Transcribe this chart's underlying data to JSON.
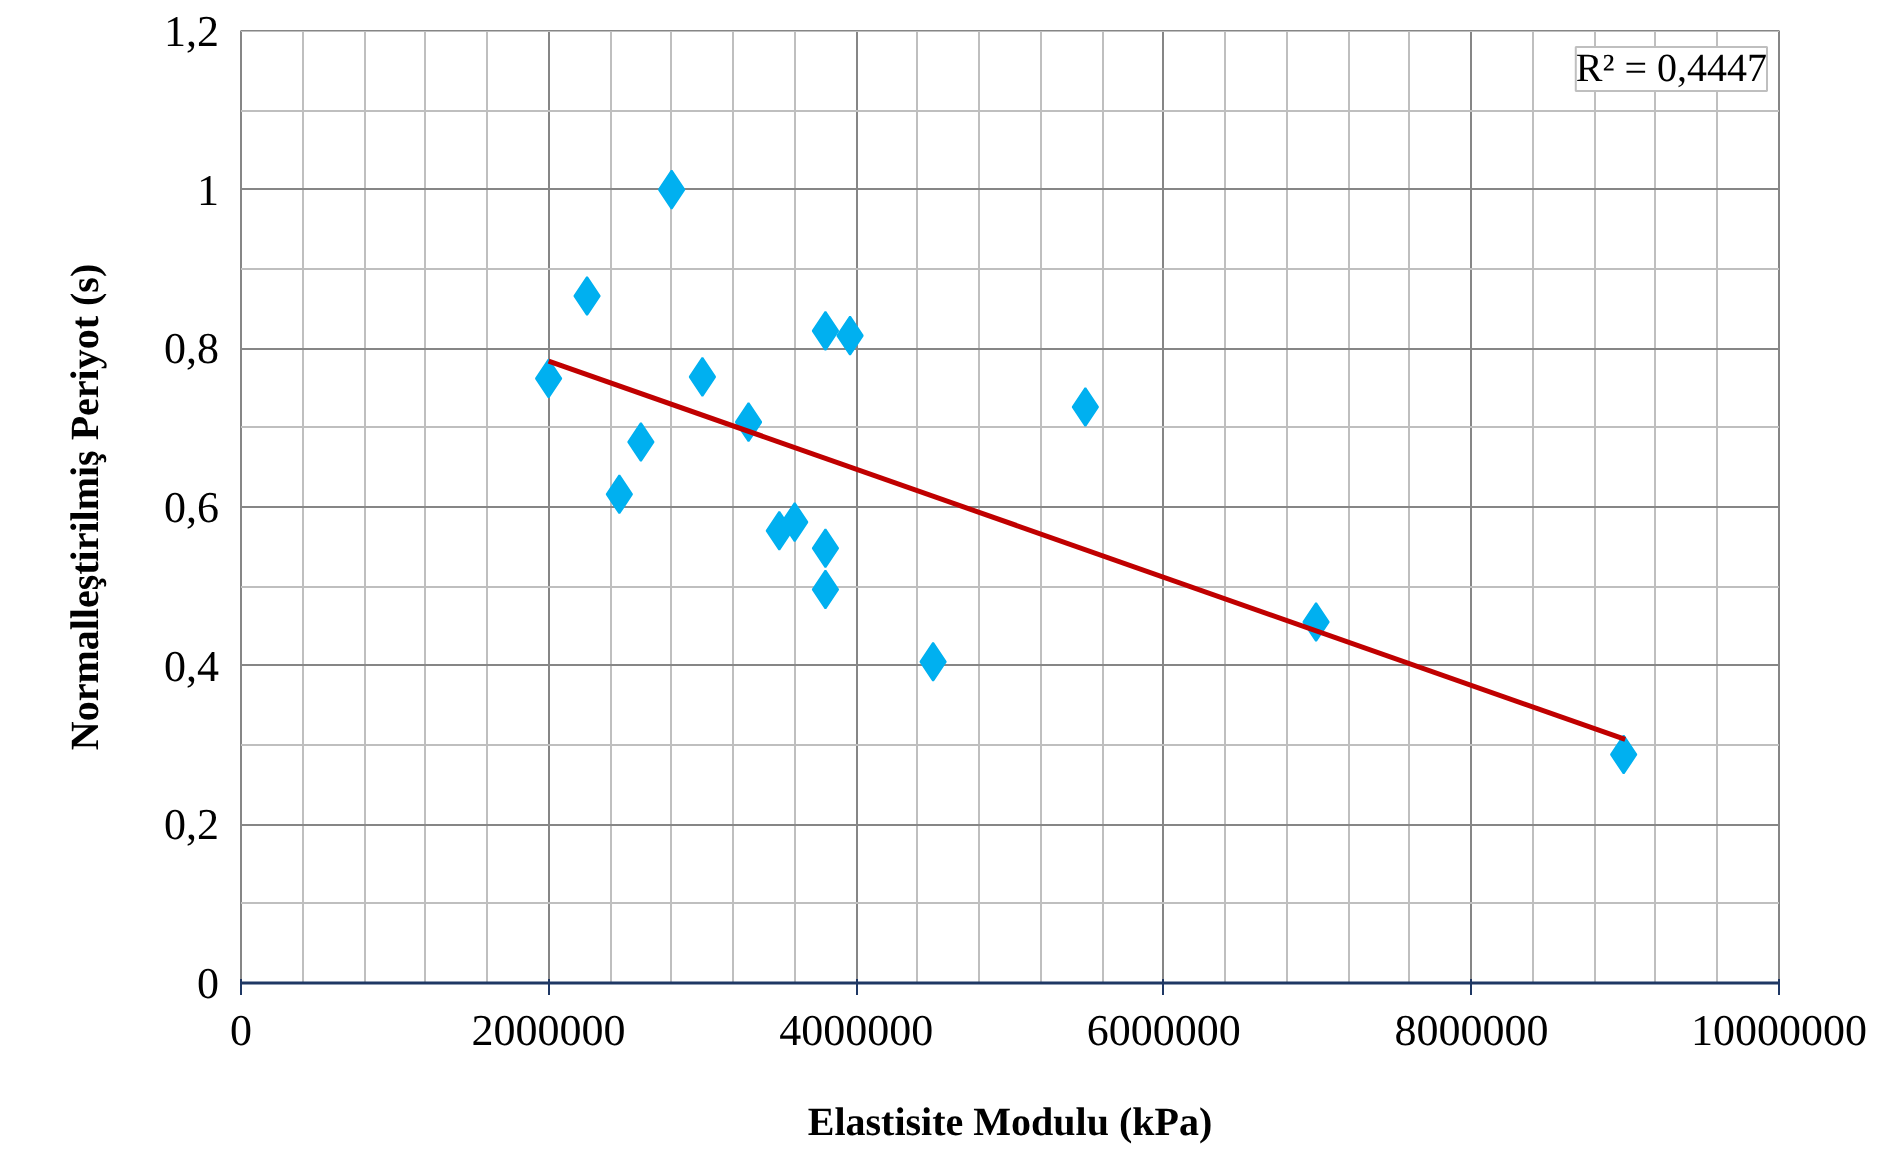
{
  "chart_data": {
    "type": "scatter",
    "xlabel": "Elastisite Modulu (kPa)",
    "ylabel": "Normalleştirilmiş Periyot (s)",
    "xlim": [
      0,
      10000000
    ],
    "ylim": [
      0,
      1.2
    ],
    "xticks": [
      0,
      2000000,
      4000000,
      6000000,
      8000000,
      10000000
    ],
    "yticks": [
      0,
      {
        "value": 0.2,
        "label": "0,2"
      },
      {
        "value": 0.4,
        "label": "0,4"
      },
      {
        "value": 0.6,
        "label": "0,6"
      },
      {
        "value": 0.8,
        "label": "0,8"
      },
      1,
      {
        "value": 1.2,
        "label": "1,2"
      }
    ],
    "grid": true,
    "marker": "diamond",
    "annotations": [
      "R² = 0,4447"
    ],
    "series": [
      {
        "color": "#00b0f0",
        "x": [
          2000000,
          2250000,
          2800000,
          2460000,
          2600000,
          3000000,
          3300000,
          3500000,
          3600000,
          3800000,
          3960000,
          3800000,
          3800000,
          4500000,
          5490000,
          6990000,
          8990000
        ],
        "values": [
          0.762,
          0.866,
          1.0,
          0.616,
          0.682,
          0.764,
          0.707,
          0.57,
          0.581,
          0.822,
          0.816,
          0.548,
          0.496,
          0.405,
          0.726,
          0.455,
          0.288
        ]
      },
      {
        "type": "line",
        "color": "#c00000",
        "marker": "none",
        "x": [
          2000000,
          9000000
        ],
        "values": [
          0.784,
          0.307
        ]
      }
    ]
  }
}
